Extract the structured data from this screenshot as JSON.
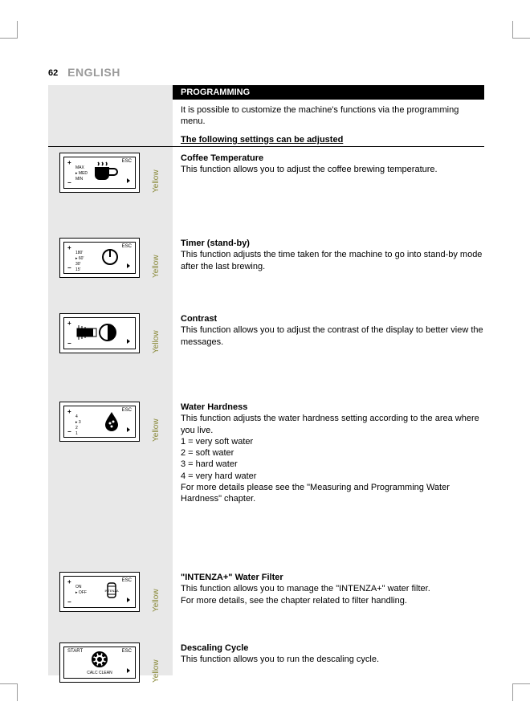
{
  "page_number": "62",
  "language_label": "ENGLISH",
  "section_title": "PROGRAMMING",
  "intro_text": "It is possible to customize the machine's functions via the programming menu.",
  "subheading": "The following settings can be adjusted",
  "yellow_label": "Yellow",
  "colors": {
    "gray_bg": "#e8e8e8",
    "header_gray": "#9a9a9a",
    "yellow_text": "#8a8a3a"
  },
  "items": [
    {
      "title": "Coffee Temperature",
      "body": "This function allows you to adjust the coffee brewing temperature.",
      "screen": {
        "esc": "ESC",
        "lines": [
          "MAX",
          "MED",
          "MIN"
        ],
        "icon": "cup"
      }
    },
    {
      "title": "Timer (stand-by)",
      "body": "This function adjusts the time taken for the machine to go into stand-by mode after the last brewing.",
      "screen": {
        "esc": "ESC",
        "lines": [
          "180'",
          "60'",
          "30'",
          "15'"
        ],
        "icon": "power"
      }
    },
    {
      "title": "Contrast",
      "body": "This function allows you to adjust the contrast of the display to better view the messages.",
      "screen": {
        "esc": "",
        "icon": "contrast"
      }
    },
    {
      "title": "Water Hardness",
      "body": "This function adjusts the water hardness setting according to the area where you live.\n1 = very soft water\n2 = soft water\n3 = hard water\n4 = very hard water\nFor more details please see the \"Measuring and Programming Water Hardness\" chapter.",
      "screen": {
        "esc": "ESC",
        "lines": [
          "4",
          "3",
          "2",
          "1"
        ],
        "icon": "drop"
      }
    },
    {
      "title": "\"INTENZA+\" Water Filter",
      "body": "This function allows you to manage the \"INTENZA+\" water filter.\nFor more details, see the chapter related to filter handling.",
      "screen": {
        "esc": "ESC",
        "lines": [
          "ON",
          "OFF"
        ],
        "icon": "filter"
      }
    },
    {
      "title": "Descaling Cycle",
      "body": "This function allows you to run the descaling cycle.",
      "screen": {
        "start": "START",
        "esc": "ESC",
        "label": "CALC CLEAN",
        "icon": "gear"
      }
    }
  ],
  "layout": {
    "item_tops": [
      190,
      296,
      390,
      500,
      712,
      800
    ]
  }
}
